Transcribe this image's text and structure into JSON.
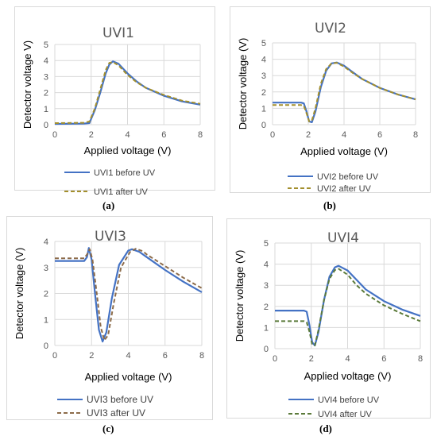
{
  "captions": [
    "(a)",
    "(b)",
    "(c)",
    "(d)"
  ],
  "colors": {
    "before": "#4472c4",
    "after": "#a38f2d",
    "after_c": "#8d6c4a",
    "after_d": "#5b7a3a",
    "grid": "#d9d9d9",
    "border": "#d9d9d9"
  },
  "chart_data": [
    {
      "type": "line",
      "title": "UVI1",
      "xlabel": "Applied voltage (V)",
      "ylabel": "Detector voltage V)",
      "xlim": [
        0,
        8
      ],
      "ylim": [
        0,
        5
      ],
      "xticks": [
        "0",
        "2",
        "4",
        "6",
        "8"
      ],
      "yticks": [
        "0",
        "1",
        "2",
        "3",
        "4",
        "5"
      ],
      "grid": true,
      "legend_position": "bottom",
      "series": [
        {
          "name": "UVI1 before UV",
          "style": "solid",
          "x": [
            0,
            1.6,
            1.9,
            2.2,
            2.5,
            2.8,
            3.0,
            3.2,
            3.5,
            4.0,
            4.5,
            5.0,
            6.0,
            7.0,
            8.0
          ],
          "y": [
            0.05,
            0.07,
            0.1,
            0.9,
            2.0,
            3.2,
            3.75,
            3.95,
            3.8,
            3.2,
            2.7,
            2.3,
            1.8,
            1.45,
            1.25
          ]
        },
        {
          "name": "UVI1 after UV",
          "style": "dashed",
          "x": [
            0,
            1.6,
            1.9,
            2.2,
            2.5,
            2.8,
            3.0,
            3.2,
            3.5,
            4.0,
            4.5,
            5.0,
            6.0,
            7.0,
            8.0
          ],
          "y": [
            0.1,
            0.12,
            0.2,
            1.0,
            2.2,
            3.4,
            3.85,
            3.9,
            3.7,
            3.1,
            2.65,
            2.3,
            1.85,
            1.5,
            1.3
          ]
        }
      ]
    },
    {
      "type": "line",
      "title": "UVI2",
      "xlabel": "Applied voltage (V)",
      "ylabel": "Detector voltage (V)",
      "xlim": [
        0,
        8
      ],
      "ylim": [
        0,
        5
      ],
      "xticks": [
        "0",
        "2",
        "4",
        "6",
        "8"
      ],
      "yticks": [
        "0",
        "1",
        "2",
        "3",
        "4",
        "5"
      ],
      "grid": true,
      "legend_position": "bottom",
      "series": [
        {
          "name": "UVI2 before UV",
          "style": "solid",
          "x": [
            0,
            1.6,
            1.75,
            1.9,
            2.05,
            2.2,
            2.4,
            2.7,
            3.0,
            3.3,
            3.6,
            4.0,
            4.5,
            5.0,
            6.0,
            7.0,
            8.0
          ],
          "y": [
            1.35,
            1.35,
            1.3,
            0.8,
            0.2,
            0.15,
            0.8,
            2.3,
            3.3,
            3.75,
            3.8,
            3.6,
            3.2,
            2.8,
            2.25,
            1.85,
            1.55
          ]
        },
        {
          "name": "UVI2 after UV",
          "style": "dashed",
          "x": [
            0,
            1.6,
            1.75,
            1.9,
            2.05,
            2.2,
            2.4,
            2.7,
            3.0,
            3.3,
            3.6,
            4.0,
            4.5,
            5.0,
            6.0,
            7.0,
            8.0
          ],
          "y": [
            1.2,
            1.2,
            1.15,
            0.7,
            0.2,
            0.25,
            1.0,
            2.5,
            3.4,
            3.75,
            3.78,
            3.55,
            3.15,
            2.8,
            2.25,
            1.85,
            1.55
          ]
        }
      ]
    },
    {
      "type": "line",
      "title": "UVI3",
      "xlabel": "Applied voltage (V)",
      "ylabel": "Detector voltage (V)",
      "xlim": [
        0,
        8
      ],
      "ylim": [
        0,
        4
      ],
      "xticks": [
        "0",
        "2",
        "4",
        "6",
        "8"
      ],
      "yticks": [
        "0",
        "1",
        "2",
        "3",
        "4"
      ],
      "grid": true,
      "legend_position": "bottom",
      "series": [
        {
          "name": "UVI3 before UV",
          "style": "solid",
          "x": [
            0,
            1.6,
            1.75,
            1.85,
            2.0,
            2.2,
            2.4,
            2.6,
            2.8,
            3.1,
            3.5,
            4.0,
            4.2,
            4.6,
            5.0,
            6.0,
            7.0,
            8.0
          ],
          "y": [
            3.25,
            3.25,
            3.4,
            3.75,
            3.3,
            1.9,
            0.6,
            0.15,
            0.5,
            1.8,
            3.1,
            3.65,
            3.7,
            3.6,
            3.4,
            2.9,
            2.45,
            2.05
          ]
        },
        {
          "name": "UVI3 after UV",
          "style": "dashed",
          "x": [
            0,
            1.6,
            1.75,
            1.9,
            2.05,
            2.3,
            2.5,
            2.7,
            2.9,
            3.2,
            3.6,
            4.1,
            4.4,
            4.8,
            5.0,
            6.0,
            7.0,
            8.0
          ],
          "y": [
            3.35,
            3.35,
            3.5,
            3.7,
            3.3,
            1.9,
            0.7,
            0.2,
            0.4,
            1.6,
            3.0,
            3.6,
            3.72,
            3.62,
            3.5,
            3.05,
            2.6,
            2.2
          ]
        }
      ]
    },
    {
      "type": "line",
      "title": "UVI4",
      "xlabel": "Applied voltage (V)",
      "ylabel": "Detector voltage (V)",
      "xlim": [
        0,
        8
      ],
      "ylim": [
        0,
        5
      ],
      "xticks": [
        "0",
        "2",
        "4",
        "6",
        "8"
      ],
      "yticks": [
        "0",
        "1",
        "2",
        "3",
        "4",
        "5"
      ],
      "grid": true,
      "legend_position": "bottom",
      "series": [
        {
          "name": "UVI4 before UV",
          "style": "solid",
          "x": [
            0,
            1.6,
            1.75,
            1.9,
            2.05,
            2.2,
            2.4,
            2.7,
            3.0,
            3.3,
            3.5,
            4.0,
            4.5,
            5.0,
            6.0,
            7.0,
            8.0
          ],
          "y": [
            1.8,
            1.8,
            1.75,
            1.1,
            0.3,
            0.15,
            0.8,
            2.3,
            3.4,
            3.85,
            3.92,
            3.7,
            3.25,
            2.8,
            2.25,
            1.85,
            1.55
          ]
        },
        {
          "name": "UVI4 after UV",
          "style": "dashed",
          "x": [
            0,
            1.6,
            1.75,
            1.9,
            2.05,
            2.2,
            2.4,
            2.7,
            3.0,
            3.3,
            3.5,
            4.0,
            4.5,
            5.0,
            6.0,
            7.0,
            8.0
          ],
          "y": [
            1.3,
            1.3,
            1.25,
            0.8,
            0.2,
            0.15,
            0.9,
            2.3,
            3.3,
            3.72,
            3.78,
            3.5,
            3.0,
            2.6,
            2.05,
            1.65,
            1.3
          ]
        }
      ]
    }
  ]
}
